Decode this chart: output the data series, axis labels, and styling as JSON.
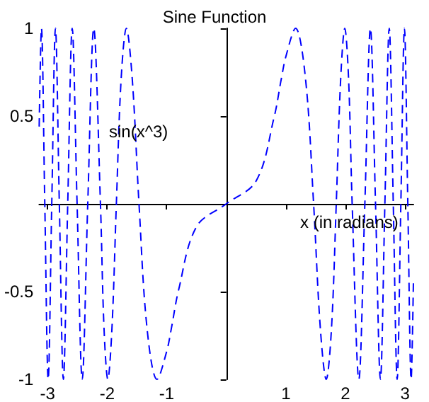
{
  "chart_data": {
    "type": "line",
    "title": "Sine Function",
    "xlabel": "x (in radians)",
    "ylabel": "sin(x^3)",
    "xlim": [
      -3.14,
      3.14
    ],
    "ylim": [
      -1,
      1
    ],
    "xticks": [
      -3,
      -2,
      -1,
      1,
      2,
      3
    ],
    "yticks": [
      -1,
      -0.5,
      0.5,
      1
    ],
    "grid": false,
    "marker": "none",
    "line_style": "dashed",
    "series": [
      {
        "color": "#0000ff",
        "x": [
          -3.14,
          -3.102,
          -3.046,
          -2.989,
          -2.929,
          -2.867,
          -2.802,
          -2.734,
          -2.661,
          -2.586,
          -2.504,
          -2.418,
          -2.325,
          -2.224,
          -2.112,
          -2.052,
          -1.988,
          -1.919,
          -1.845,
          -1.765,
          -1.677,
          -1.578,
          -1.465,
          -1.33,
          -1.162,
          -1.0,
          -0.922,
          -0.8,
          -0.5,
          0,
          0.5,
          0.8,
          0.922,
          1.0,
          1.162,
          1.33,
          1.465,
          1.578,
          1.677,
          1.765,
          1.845,
          1.919,
          1.988,
          2.052,
          2.112,
          2.224,
          2.325,
          2.418,
          2.504,
          2.586,
          2.661,
          2.734,
          2.802,
          2.867,
          2.929,
          2.989,
          3.046,
          3.102,
          3.14
        ],
        "values": [
          0.44,
          1,
          0,
          -1,
          0,
          1,
          0,
          -1,
          0,
          1,
          0,
          -1,
          0,
          1,
          0,
          -0.71,
          -1,
          -0.71,
          0,
          0.71,
          1,
          0.71,
          0,
          -0.71,
          -1,
          -0.84,
          -0.71,
          -0.49,
          -0.13,
          0,
          0.13,
          0.49,
          0.71,
          0.84,
          1,
          0.71,
          0,
          -0.71,
          -1,
          -0.71,
          0,
          0.71,
          1,
          0.71,
          0,
          -1,
          0,
          1,
          0,
          -1,
          0,
          1,
          0,
          -1,
          0,
          1,
          0,
          -1,
          -0.44
        ]
      }
    ]
  }
}
